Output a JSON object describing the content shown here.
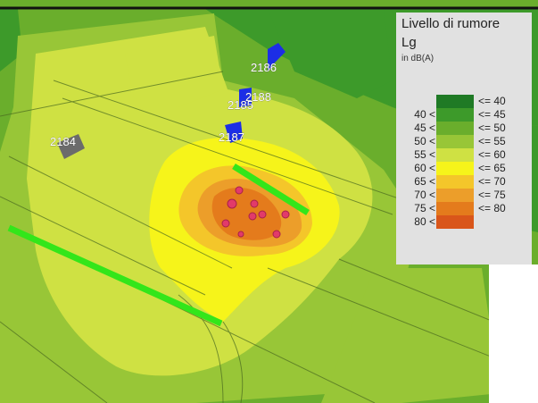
{
  "legend": {
    "title": "Livello di rumore",
    "symbol": "Lg",
    "unit": "in dB(A)",
    "classes": [
      {
        "lower": "",
        "upper": "<= 40",
        "color": "#1f7a25"
      },
      {
        "lower": "40 <",
        "upper": "<= 45",
        "color": "#3d9a2a"
      },
      {
        "lower": "45 <",
        "upper": "<= 50",
        "color": "#6aae2c"
      },
      {
        "lower": "50 <",
        "upper": "<= 55",
        "color": "#98c637"
      },
      {
        "lower": "55 <",
        "upper": "<= 60",
        "color": "#cfe143"
      },
      {
        "lower": "60 <",
        "upper": "<= 65",
        "color": "#f6f41a"
      },
      {
        "lower": "65 <",
        "upper": "<= 70",
        "color": "#f4c62a"
      },
      {
        "lower": "70 <",
        "upper": "<= 75",
        "color": "#ec9e2a"
      },
      {
        "lower": "75 <",
        "upper": "<= 80",
        "color": "#e47b1c"
      },
      {
        "lower": "80 <",
        "upper": "",
        "color": "#d9561a"
      }
    ]
  },
  "buildings": [
    {
      "id": "2184"
    },
    {
      "id": "2186"
    },
    {
      "id": "2188"
    },
    {
      "id": "2185"
    },
    {
      "id": "2187"
    }
  ]
}
